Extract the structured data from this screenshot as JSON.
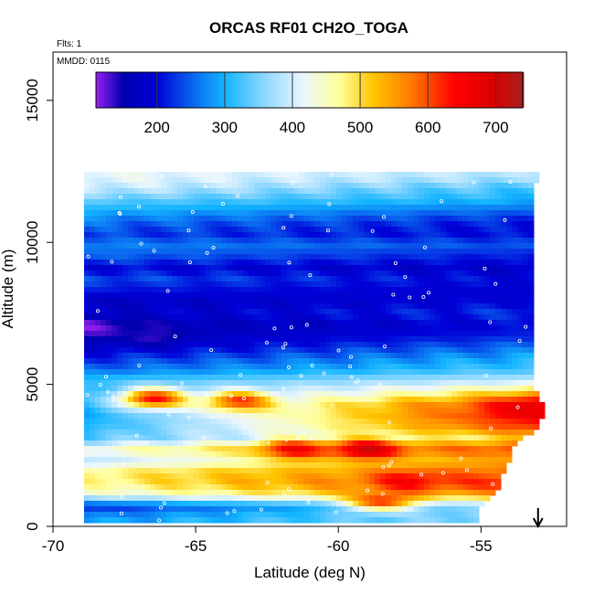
{
  "chart_data": {
    "type": "heatmap",
    "title": "ORCAS RF01 CH2O_TOGA",
    "flights_label": "Flts: 1",
    "date_label": "MMDD: 0115",
    "xlabel": "Latitude (deg N)",
    "ylabel": "Altitude (m)",
    "xlim": [
      -70,
      -52
    ],
    "ylim": [
      0,
      16700
    ],
    "x_ticks": [
      -70,
      -65,
      -60,
      -55
    ],
    "y_ticks": [
      0,
      5000,
      10000,
      15000
    ],
    "grid": false,
    "colorbar": {
      "range": [
        110,
        740
      ],
      "ticks": [
        200,
        300,
        400,
        500,
        600,
        700
      ],
      "stops": [
        {
          "value": 110,
          "color": "#9a1fef"
        },
        {
          "value": 150,
          "color": "#0000b0"
        },
        {
          "value": 200,
          "color": "#0000d8"
        },
        {
          "value": 255,
          "color": "#0a6af0"
        },
        {
          "value": 300,
          "color": "#12b4ff"
        },
        {
          "value": 360,
          "color": "#8fd8ff"
        },
        {
          "value": 415,
          "color": "#eaf6ff"
        },
        {
          "value": 470,
          "color": "#ffff9a"
        },
        {
          "value": 520,
          "color": "#ffc400"
        },
        {
          "value": 575,
          "color": "#ff7a00"
        },
        {
          "value": 640,
          "color": "#ff0000"
        },
        {
          "value": 700,
          "color": "#d80000"
        },
        {
          "value": 740,
          "color": "#a52020"
        }
      ]
    },
    "field_extent": {
      "lat_range": [
        -68.9,
        -52.8
      ],
      "alt_range": [
        200,
        12500
      ]
    },
    "layers": [
      {
        "alt": 300,
        "lat_start": -68.9,
        "lat_end": -55.0,
        "value_start": 280,
        "value_end": 370
      },
      {
        "alt": 700,
        "lat_start": -68.9,
        "lat_end": -55.0,
        "value_start": 210,
        "value_end": 380
      },
      {
        "alt": 1100,
        "lat_start": -68.9,
        "lat_end": -54.5,
        "value_start": 420,
        "value_end": 560
      },
      {
        "alt": 1500,
        "lat_start": -68.9,
        "lat_end": -54.3,
        "value_start": 470,
        "value_end": 640
      },
      {
        "alt": 1900,
        "lat_start": -68.9,
        "lat_end": -54.2,
        "value_start": 480,
        "value_end": 600
      },
      {
        "alt": 2300,
        "lat_start": -68.9,
        "lat_end": -54.0,
        "value_start": 380,
        "value_end": 560
      },
      {
        "alt": 2700,
        "lat_start": -68.9,
        "lat_end": -53.9,
        "value_start": 440,
        "value_end": 620
      },
      {
        "alt": 3100,
        "lat_start": -68.9,
        "lat_end": -53.5,
        "value_start": 330,
        "value_end": 520
      },
      {
        "alt": 3500,
        "lat_start": -68.9,
        "lat_end": -53.0,
        "value_start": 300,
        "value_end": 620
      },
      {
        "alt": 3900,
        "lat_start": -68.9,
        "lat_end": -52.8,
        "value_start": 290,
        "value_end": 660
      },
      {
        "alt": 4300,
        "lat_start": -68.9,
        "lat_end": -52.8,
        "value_start": 300,
        "value_end": 640
      },
      {
        "alt": 4700,
        "lat_start": -68.9,
        "lat_end": -53.0,
        "value_start": 300,
        "value_end": 520
      },
      {
        "alt": 5100,
        "lat_start": -68.9,
        "lat_end": -53.2,
        "value_start": 320,
        "value_end": 400
      },
      {
        "alt": 5500,
        "lat_start": -68.9,
        "lat_end": -53.2,
        "value_start": 260,
        "value_end": 330
      },
      {
        "alt": 5900,
        "lat_start": -68.9,
        "lat_end": -53.2,
        "value_start": 220,
        "value_end": 300
      },
      {
        "alt": 6300,
        "lat_start": -68.9,
        "lat_end": -53.2,
        "value_start": 180,
        "value_end": 260
      },
      {
        "alt": 6700,
        "lat_start": -68.9,
        "lat_end": -53.2,
        "value_start": 160,
        "value_end": 220
      },
      {
        "alt": 7100,
        "lat_start": -68.9,
        "lat_end": -53.2,
        "value_start": 150,
        "value_end": 200
      },
      {
        "alt": 7500,
        "lat_start": -68.9,
        "lat_end": -53.2,
        "value_start": 180,
        "value_end": 230
      },
      {
        "alt": 7900,
        "lat_start": -68.9,
        "lat_end": -53.2,
        "value_start": 170,
        "value_end": 200
      },
      {
        "alt": 8300,
        "lat_start": -68.9,
        "lat_end": -53.2,
        "value_start": 210,
        "value_end": 190
      },
      {
        "alt": 8700,
        "lat_start": -68.9,
        "lat_end": -53.2,
        "value_start": 240,
        "value_end": 200
      },
      {
        "alt": 9100,
        "lat_start": -68.9,
        "lat_end": -53.2,
        "value_start": 200,
        "value_end": 180
      },
      {
        "alt": 9500,
        "lat_start": -68.9,
        "lat_end": -53.2,
        "value_start": 250,
        "value_end": 210
      },
      {
        "alt": 9900,
        "lat_start": -68.9,
        "lat_end": -53.2,
        "value_start": 270,
        "value_end": 240
      },
      {
        "alt": 10300,
        "lat_start": -68.9,
        "lat_end": -53.2,
        "value_start": 230,
        "value_end": 200
      },
      {
        "alt": 10700,
        "lat_start": -68.9,
        "lat_end": -53.2,
        "value_start": 260,
        "value_end": 210
      },
      {
        "alt": 11100,
        "lat_start": -68.9,
        "lat_end": -53.2,
        "value_start": 300,
        "value_end": 250
      },
      {
        "alt": 11500,
        "lat_start": -68.9,
        "lat_end": -53.2,
        "value_start": 340,
        "value_end": 300
      },
      {
        "alt": 11900,
        "lat_start": -68.9,
        "lat_end": -53.2,
        "value_start": 400,
        "value_end": 320
      },
      {
        "alt": 12300,
        "lat_start": -68.9,
        "lat_end": -53.0,
        "value_start": 420,
        "value_end": 380
      }
    ],
    "blobs": [
      {
        "lat": -66.5,
        "alt": 4500,
        "value": 640
      },
      {
        "lat": -63.5,
        "alt": 4400,
        "value": 610
      },
      {
        "lat": -61.5,
        "alt": 2700,
        "value": 650
      },
      {
        "lat": -59.0,
        "alt": 2700,
        "value": 700
      },
      {
        "lat": -57.5,
        "alt": 1600,
        "value": 650
      },
      {
        "lat": -58.5,
        "alt": 900,
        "value": 620
      },
      {
        "lat": -53.2,
        "alt": 4200,
        "value": 680
      },
      {
        "lat": -68.5,
        "alt": 7000,
        "value": 120
      },
      {
        "lat": -66.5,
        "alt": 6700,
        "value": 140
      }
    ],
    "arrow_marker": {
      "lat": -53.0,
      "direction": "down"
    }
  }
}
